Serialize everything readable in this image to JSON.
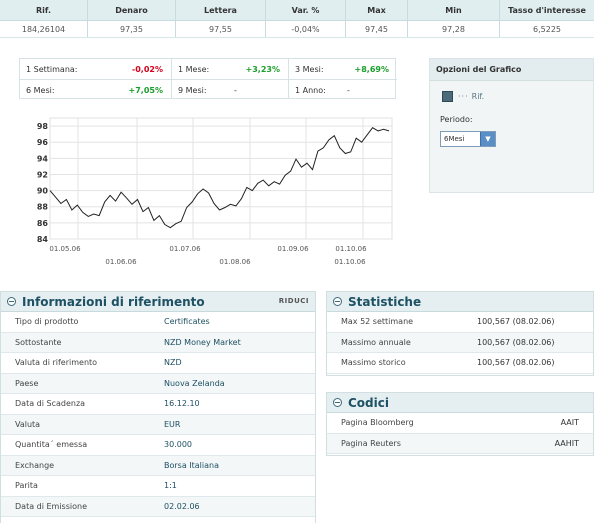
{
  "quote": {
    "headers": [
      "Rif.",
      "Denaro",
      "Lettera",
      "Var. %",
      "Max",
      "Min",
      "Tasso d'interesse"
    ],
    "values": [
      "184,26104",
      "97,35",
      "97,55",
      "-0,04%",
      "97,45",
      "97,28",
      "6,5225"
    ]
  },
  "performance": [
    {
      "label": "1 Settimana:",
      "value": "-0,02%",
      "sign": "neg"
    },
    {
      "label": "1 Mese:",
      "value": "+3,23%",
      "sign": "pos"
    },
    {
      "label": "3 Mesi:",
      "value": "+8,69%",
      "sign": "pos"
    },
    {
      "label": "6 Mesi:",
      "value": "+7,05%",
      "sign": "pos"
    },
    {
      "label": "9 Mesi:",
      "value": "-",
      "sign": "neu"
    },
    {
      "label": "1 Anno:",
      "value": "-",
      "sign": "neu"
    }
  ],
  "chart_data": {
    "type": "line",
    "ylim": [
      84,
      99
    ],
    "y_ticks": [
      "84",
      "86",
      "88",
      "90",
      "92",
      "94",
      "96",
      "98"
    ],
    "x_ticks_top": [
      "01.05.06",
      "01.07.06",
      "01.09.06",
      "01.10.06"
    ],
    "x_ticks_bottom": [
      "01.06.06",
      "01.08.06",
      "01.10.06"
    ],
    "series": [
      {
        "values": [
          90.0,
          89.2,
          88.4,
          88.9,
          87.6,
          88.2,
          87.3,
          86.8,
          87.1,
          86.9,
          88.6,
          89.4,
          88.7,
          89.8,
          89.1,
          88.3,
          88.9,
          87.4,
          87.9,
          86.3,
          86.9,
          85.8,
          85.4,
          85.9,
          86.2,
          87.9,
          88.6,
          89.6,
          90.2,
          89.7,
          88.4,
          87.6,
          87.9,
          88.3,
          88.1,
          89.0,
          90.4,
          90.0,
          90.9,
          91.3,
          90.6,
          91.1,
          90.8,
          91.9,
          92.4,
          93.9,
          92.9,
          93.4,
          92.6,
          94.9,
          95.3,
          96.3,
          96.8,
          95.3,
          94.6,
          94.8,
          96.5,
          96.0,
          96.9,
          97.8,
          97.4,
          97.6,
          97.4
        ]
      }
    ]
  },
  "options": {
    "title": "Opzioni del Grafico",
    "legend": "Rif.",
    "period_label": "Periodo:",
    "period_value": "6Mesi"
  },
  "info": {
    "title": "Informazioni di riferimento",
    "tag": "RIDUCI",
    "rows": [
      {
        "k": "Tipo di prodotto",
        "v": "Certificates"
      },
      {
        "k": "Sottostante",
        "v": "NZD Money Market"
      },
      {
        "k": "Valuta di riferimento",
        "v": "NZD"
      },
      {
        "k": "Paese",
        "v": "Nuova Zelanda"
      },
      {
        "k": "Data di Scadenza",
        "v": "16.12.10"
      },
      {
        "k": "Valuta",
        "v": "EUR"
      },
      {
        "k": "Quantita´ emessa",
        "v": "30.000"
      },
      {
        "k": "Exchange",
        "v": "Borsa Italiana"
      },
      {
        "k": "Parita",
        "v": "1:1"
      },
      {
        "k": "Data di Emissione",
        "v": "02.02.06"
      }
    ]
  },
  "stats": {
    "title": "Statistiche",
    "rows": [
      {
        "k": "Max 52 settimane",
        "v": "100,567 (08.02.06)"
      },
      {
        "k": "Massimo annuale",
        "v": "100,567 (08.02.06)"
      },
      {
        "k": "Massimo storico",
        "v": "100,567 (08.02.06)"
      }
    ]
  },
  "codes": {
    "title": "Codici",
    "rows": [
      {
        "k": "Pagina Bloomberg",
        "v": "AAIT"
      },
      {
        "k": "Pagina Reuters",
        "v": "AAHIT"
      }
    ]
  }
}
